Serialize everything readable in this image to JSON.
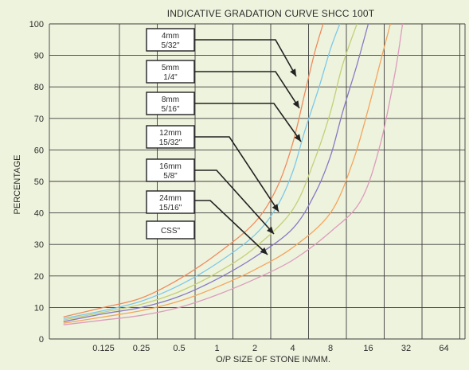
{
  "chart_data": {
    "type": "line",
    "title": "INDICATIVE GRADATION CURVE SHCC 100T",
    "xlabel": "O/P SIZE OF STONE IN/MM.",
    "ylabel": "PERCENTAGE",
    "x_scale": "log2",
    "x_ticks": [
      "0.125",
      "0.25",
      "0.5",
      "1",
      "2",
      "4",
      "8",
      "16",
      "32",
      "64"
    ],
    "y_ticks": [
      "0",
      "10",
      "20",
      "30",
      "40",
      "50",
      "60",
      "70",
      "80",
      "90",
      "100"
    ],
    "ylim": [
      0,
      100
    ],
    "grid": true,
    "series": [
      {
        "name": "4mm 5/32\"",
        "color": "#f08a5d",
        "points": [
          [
            0.06,
            7
          ],
          [
            0.125,
            10
          ],
          [
            0.25,
            13
          ],
          [
            0.5,
            19
          ],
          [
            1,
            27
          ],
          [
            2,
            37
          ],
          [
            3,
            48
          ],
          [
            4,
            62
          ],
          [
            5,
            78
          ],
          [
            6,
            91
          ],
          [
            7,
            100
          ]
        ]
      },
      {
        "name": "5mm 1/4\"",
        "color": "#7ec8e8",
        "points": [
          [
            0.06,
            6.5
          ],
          [
            0.125,
            9
          ],
          [
            0.25,
            12
          ],
          [
            0.5,
            17
          ],
          [
            1,
            24
          ],
          [
            2,
            33
          ],
          [
            3,
            42
          ],
          [
            4,
            53
          ],
          [
            5,
            66
          ],
          [
            6.5,
            80
          ],
          [
            8,
            92
          ],
          [
            9.5,
            100
          ]
        ]
      },
      {
        "name": "8mm 5/16\"",
        "color": "#c4cf79",
        "points": [
          [
            0.06,
            6
          ],
          [
            0.125,
            8.5
          ],
          [
            0.25,
            11
          ],
          [
            0.5,
            15
          ],
          [
            1,
            21
          ],
          [
            2,
            29
          ],
          [
            4,
            41
          ],
          [
            6,
            57
          ],
          [
            8,
            72
          ],
          [
            10,
            87
          ],
          [
            13,
            100
          ]
        ]
      },
      {
        "name": "12mm 15/32\"",
        "color": "#8878c4",
        "points": [
          [
            0.06,
            5.5
          ],
          [
            0.125,
            8
          ],
          [
            0.25,
            10
          ],
          [
            0.5,
            13.5
          ],
          [
            1,
            19
          ],
          [
            2,
            26
          ],
          [
            4,
            35
          ],
          [
            6,
            46
          ],
          [
            8,
            58
          ],
          [
            10,
            72
          ],
          [
            13,
            87
          ],
          [
            16,
            100
          ]
        ]
      },
      {
        "name": "16mm 5/8\"",
        "color": "#f4a55c",
        "points": [
          [
            0.06,
            5
          ],
          [
            0.125,
            7
          ],
          [
            0.25,
            9
          ],
          [
            0.5,
            12
          ],
          [
            1,
            16.5
          ],
          [
            2,
            22
          ],
          [
            4,
            29
          ],
          [
            8,
            40
          ],
          [
            12,
            56
          ],
          [
            16,
            73
          ],
          [
            20,
            88
          ],
          [
            24,
            100
          ]
        ]
      },
      {
        "name": "24mm 15/16\"",
        "color": "#dd9bbd",
        "points": [
          [
            0.06,
            4.5
          ],
          [
            0.125,
            6
          ],
          [
            0.25,
            7.5
          ],
          [
            0.5,
            10
          ],
          [
            1,
            14
          ],
          [
            2,
            19
          ],
          [
            4,
            25
          ],
          [
            8,
            34
          ],
          [
            14,
            44
          ],
          [
            20,
            62
          ],
          [
            26,
            84
          ],
          [
            30,
            100
          ]
        ]
      }
    ],
    "labels": [
      {
        "line1": "4mm",
        "line2": "5/32\""
      },
      {
        "line1": "5mm",
        "line2": "1/4\""
      },
      {
        "line1": "8mm",
        "line2": "5/16\""
      },
      {
        "line1": "12mm",
        "line2": "15/32\""
      },
      {
        "line1": "16mm",
        "line2": "5/8\""
      },
      {
        "line1": "24mm",
        "line2": "15/16\""
      },
      {
        "line1": "CSS\"",
        "line2": ""
      }
    ]
  }
}
